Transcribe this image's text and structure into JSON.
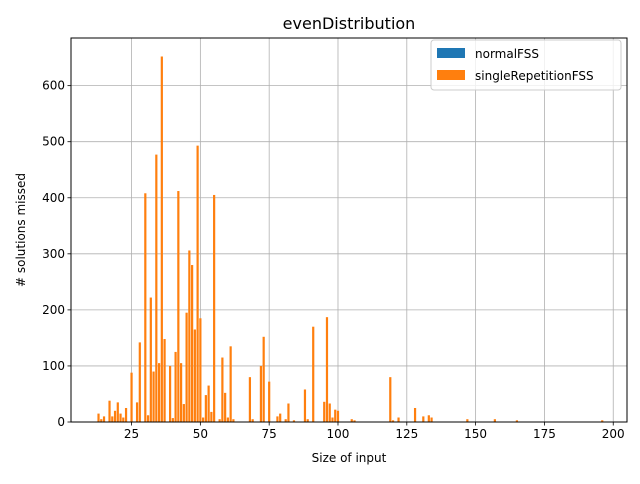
{
  "chart_data": {
    "type": "bar",
    "title": "evenDistribution",
    "xlabel": "Size of input",
    "ylabel": "# solutions missed",
    "xlim": [
      3,
      205
    ],
    "ylim": [
      0,
      685
    ],
    "xticks": [
      25,
      50,
      75,
      100,
      125,
      150,
      175,
      200
    ],
    "yticks": [
      0,
      100,
      200,
      300,
      400,
      500,
      600
    ],
    "grid": true,
    "legend_position": "upper right",
    "bar_width": 0.8,
    "series": [
      {
        "name": "normalFSS",
        "color": "#1f77b4",
        "points": []
      },
      {
        "name": "singleRepetitionFSS",
        "color": "#ff7f0e",
        "points": [
          [
            13,
            15
          ],
          [
            14,
            5
          ],
          [
            15,
            10
          ],
          [
            17,
            38
          ],
          [
            18,
            10
          ],
          [
            19,
            20
          ],
          [
            20,
            35
          ],
          [
            21,
            15
          ],
          [
            22,
            8
          ],
          [
            23,
            25
          ],
          [
            25,
            88
          ],
          [
            27,
            35
          ],
          [
            28,
            142
          ],
          [
            30,
            408
          ],
          [
            31,
            12
          ],
          [
            32,
            222
          ],
          [
            33,
            90
          ],
          [
            34,
            477
          ],
          [
            35,
            105
          ],
          [
            36,
            652
          ],
          [
            37,
            148
          ],
          [
            39,
            100
          ],
          [
            40,
            7
          ],
          [
            41,
            125
          ],
          [
            42,
            412
          ],
          [
            43,
            105
          ],
          [
            44,
            32
          ],
          [
            45,
            195
          ],
          [
            46,
            306
          ],
          [
            47,
            280
          ],
          [
            48,
            165
          ],
          [
            49,
            493
          ],
          [
            50,
            185
          ],
          [
            51,
            8
          ],
          [
            52,
            48
          ],
          [
            53,
            65
          ],
          [
            54,
            18
          ],
          [
            55,
            405
          ],
          [
            57,
            5
          ],
          [
            58,
            115
          ],
          [
            59,
            52
          ],
          [
            60,
            8
          ],
          [
            61,
            135
          ],
          [
            62,
            5
          ],
          [
            68,
            80
          ],
          [
            69,
            5
          ],
          [
            72,
            100
          ],
          [
            73,
            152
          ],
          [
            75,
            72
          ],
          [
            78,
            10
          ],
          [
            79,
            15
          ],
          [
            81,
            5
          ],
          [
            82,
            33
          ],
          [
            84,
            3
          ],
          [
            88,
            58
          ],
          [
            89,
            5
          ],
          [
            91,
            170
          ],
          [
            95,
            36
          ],
          [
            96,
            187
          ],
          [
            97,
            33
          ],
          [
            98,
            8
          ],
          [
            99,
            22
          ],
          [
            100,
            20
          ],
          [
            105,
            5
          ],
          [
            106,
            3
          ],
          [
            119,
            80
          ],
          [
            120,
            3
          ],
          [
            122,
            8
          ],
          [
            128,
            25
          ],
          [
            131,
            10
          ],
          [
            133,
            12
          ],
          [
            134,
            8
          ],
          [
            147,
            5
          ],
          [
            157,
            5
          ],
          [
            165,
            3
          ],
          [
            196,
            3
          ]
        ]
      }
    ]
  }
}
